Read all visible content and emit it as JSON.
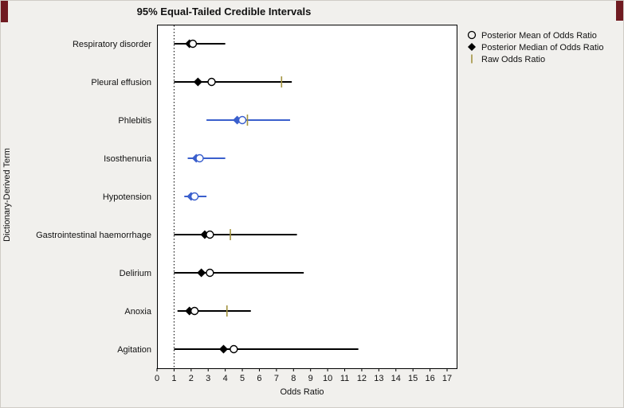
{
  "window": {
    "background_color": "#f1f0ed",
    "chrome_color": "#701b21"
  },
  "chart_data": {
    "type": "forest-interval",
    "title": "95% Equal-Tailed Credible Intervals",
    "xlabel": "Odds Ratio",
    "ylabel": "Dictionary-Derived Term",
    "xlim": [
      0,
      17
    ],
    "xticks": [
      0,
      1,
      2,
      3,
      4,
      5,
      6,
      7,
      8,
      9,
      10,
      11,
      12,
      13,
      14,
      15,
      16,
      17
    ],
    "reference_line": 1,
    "grid": false,
    "legend_position": "right-top",
    "colors": {
      "default": "#000000",
      "highlight": "#3a5fcd",
      "raw": "#a39440"
    },
    "legend": [
      {
        "symbol": "open-circle",
        "label": "Posterior Mean of Odds Ratio"
      },
      {
        "symbol": "filled-diamond",
        "label": "Posterior Median of Odds Ratio"
      },
      {
        "symbol": "vertical-tick",
        "label": "Raw Odds Ratio"
      }
    ],
    "rows": [
      {
        "term": "Respiratory disorder",
        "lower": 1.0,
        "upper": 4.0,
        "median": 1.9,
        "mean": 2.1,
        "raw": null,
        "color": "default"
      },
      {
        "term": "Pleural effusion",
        "lower": 1.0,
        "upper": 7.9,
        "median": 2.4,
        "mean": 3.2,
        "raw": 7.3,
        "color": "default"
      },
      {
        "term": "Phlebitis",
        "lower": 2.9,
        "upper": 7.8,
        "median": 4.7,
        "mean": 5.0,
        "raw": 5.3,
        "color": "highlight"
      },
      {
        "term": "Isosthenuria",
        "lower": 1.8,
        "upper": 4.0,
        "median": 2.3,
        "mean": 2.5,
        "raw": null,
        "color": "highlight"
      },
      {
        "term": "Hypotension",
        "lower": 1.6,
        "upper": 2.9,
        "median": 2.0,
        "mean": 2.2,
        "raw": null,
        "color": "highlight"
      },
      {
        "term": "Gastrointestinal haemorrhage",
        "lower": 1.0,
        "upper": 8.2,
        "median": 2.8,
        "mean": 3.1,
        "raw": 4.3,
        "color": "default"
      },
      {
        "term": "Delirium",
        "lower": 1.0,
        "upper": 8.6,
        "median": 2.6,
        "mean": 3.1,
        "raw": null,
        "color": "default"
      },
      {
        "term": "Anoxia",
        "lower": 1.2,
        "upper": 5.5,
        "median": 1.9,
        "mean": 2.2,
        "raw": 4.1,
        "color": "default"
      },
      {
        "term": "Agitation",
        "lower": 1.0,
        "upper": 11.8,
        "median": 3.9,
        "mean": 4.5,
        "raw": null,
        "color": "default"
      }
    ]
  }
}
